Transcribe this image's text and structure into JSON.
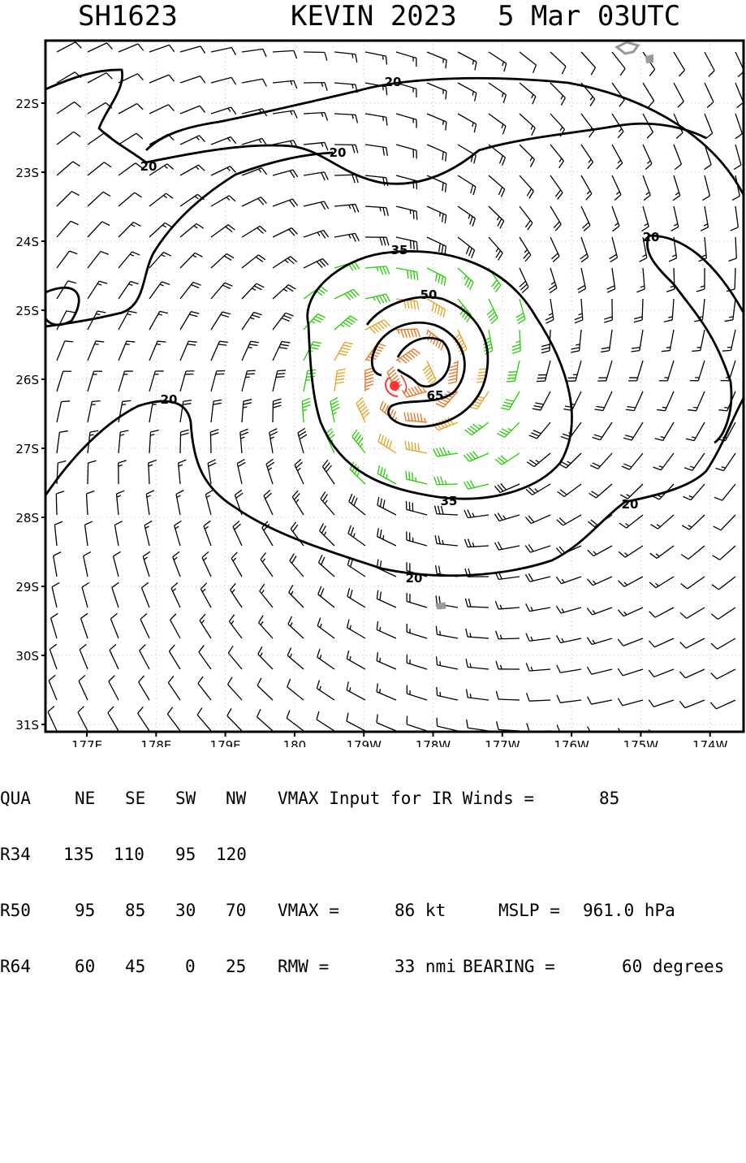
{
  "header": {
    "storm_id": "SH1623",
    "storm_name_year": "KEVIN 2023",
    "datetime": "5 Mar 03UTC"
  },
  "map": {
    "lat_labels": [
      "22S",
      "23S",
      "24S",
      "25S",
      "26S",
      "27S",
      "28S",
      "29S",
      "30S",
      "31S"
    ],
    "lon_labels": [
      "177E",
      "178E",
      "179E",
      "180",
      "179W",
      "178W",
      "177W",
      "176W",
      "175W",
      "174W"
    ],
    "contour_labels": [
      "20",
      "20",
      "20",
      "20",
      "20",
      "20",
      "35",
      "35",
      "50",
      "65"
    ],
    "colors": {
      "below_34kt": "#000000",
      "34_to_49kt": "#22cc00",
      "50_to_63kt": "#e8a020",
      "64kt_plus": "#e8701a",
      "center": "#ff3333",
      "land": "#999999"
    }
  },
  "table": {
    "header": [
      "QUA",
      "NE",
      "SE",
      "SW",
      "NW"
    ],
    "rows": [
      [
        "R34",
        "135",
        "110",
        "95",
        "120"
      ],
      [
        "R50",
        "95",
        "85",
        "30",
        "70"
      ],
      [
        "R64",
        "60",
        "45",
        "0",
        "25"
      ]
    ],
    "vmax_input_label": "VMAX Input for IR Winds =",
    "vmax_input_value": "85",
    "vmax_label": "VMAX =",
    "vmax_value": "86 kt",
    "mslp_label": "MSLP =",
    "mslp_value": "961.0 hPa",
    "rmw_label": "RMW =",
    "rmw_value": "33 nmi",
    "bearing_label": "BEARING =",
    "bearing_value": "60 degrees"
  }
}
